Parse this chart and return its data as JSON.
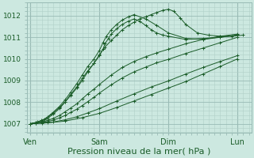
{
  "background_color": "#cce8e0",
  "plot_bg_color": "#cce8e0",
  "grid_minor_color": "#b0d0c8",
  "grid_major_color": "#99bbb5",
  "line_color": "#1a5c28",
  "ylim": [
    1006.6,
    1012.6
  ],
  "yticks": [
    1007,
    1008,
    1009,
    1010,
    1011,
    1012
  ],
  "xlabel": "Pression niveau de la mer( hPa )",
  "xlabel_fontsize": 8,
  "xtick_labels": [
    "Ven",
    "Sam",
    "Dim",
    "Lun"
  ],
  "xtick_positions": [
    0,
    1,
    2,
    3
  ],
  "series": [
    {
      "x": [
        0.0,
        0.08,
        0.16,
        0.25,
        0.33,
        0.42,
        0.5,
        0.58,
        0.67,
        0.75,
        0.83,
        0.92,
        1.0,
        1.08,
        1.17,
        1.25,
        1.33,
        1.42,
        1.5,
        1.58,
        1.67,
        1.75,
        1.83,
        1.92,
        2.0,
        2.08,
        2.17,
        2.25,
        2.42,
        2.58,
        2.75,
        2.92,
        3.08
      ],
      "y": [
        1007.0,
        1007.05,
        1007.15,
        1007.3,
        1007.5,
        1007.75,
        1008.0,
        1008.3,
        1008.65,
        1009.0,
        1009.4,
        1009.8,
        1010.2,
        1010.55,
        1010.85,
        1011.1,
        1011.35,
        1011.55,
        1011.7,
        1011.85,
        1011.95,
        1012.05,
        1012.15,
        1012.25,
        1012.3,
        1012.2,
        1011.9,
        1011.6,
        1011.2,
        1011.1,
        1011.05,
        1011.05,
        1011.1
      ]
    },
    {
      "x": [
        0.0,
        0.1,
        0.2,
        0.3,
        0.42,
        0.5,
        0.58,
        0.67,
        0.75,
        0.83,
        0.92,
        1.0,
        1.05,
        1.1,
        1.17,
        1.25,
        1.33,
        1.42,
        1.5,
        1.67,
        1.83,
        2.0,
        2.25,
        2.5,
        2.75,
        3.0
      ],
      "y": [
        1007.0,
        1007.08,
        1007.2,
        1007.45,
        1007.8,
        1008.1,
        1008.45,
        1008.85,
        1009.25,
        1009.65,
        1010.0,
        1010.4,
        1010.75,
        1011.05,
        1011.35,
        1011.6,
        1011.8,
        1011.95,
        1012.05,
        1011.85,
        1011.55,
        1011.2,
        1010.95,
        1010.9,
        1011.0,
        1011.1
      ]
    },
    {
      "x": [
        0.0,
        0.08,
        0.17,
        0.25,
        0.33,
        0.42,
        0.5,
        0.58,
        0.67,
        0.75,
        0.83,
        0.92,
        1.0,
        1.05,
        1.08,
        1.13,
        1.17,
        1.25,
        1.33,
        1.42,
        1.5,
        1.58,
        1.67,
        1.75,
        1.83,
        1.92,
        2.0,
        2.25,
        2.5,
        2.75,
        3.0
      ],
      "y": [
        1007.0,
        1007.05,
        1007.12,
        1007.25,
        1007.45,
        1007.7,
        1008.0,
        1008.35,
        1008.7,
        1009.1,
        1009.45,
        1009.8,
        1010.15,
        1010.45,
        1010.7,
        1010.95,
        1011.15,
        1011.4,
        1011.6,
        1011.75,
        1011.85,
        1011.75,
        1011.55,
        1011.35,
        1011.2,
        1011.1,
        1011.05,
        1010.9,
        1010.95,
        1011.0,
        1011.1
      ]
    },
    {
      "x": [
        0.0,
        0.08,
        0.17,
        0.25,
        0.33,
        0.42,
        0.5,
        0.58,
        0.67,
        0.75,
        0.83,
        0.92,
        1.0,
        1.17,
        1.33,
        1.5,
        1.67,
        1.83,
        2.0,
        2.25,
        2.5,
        2.75,
        3.0
      ],
      "y": [
        1007.0,
        1007.03,
        1007.08,
        1007.15,
        1007.25,
        1007.38,
        1007.55,
        1007.72,
        1007.92,
        1008.15,
        1008.38,
        1008.6,
        1008.82,
        1009.25,
        1009.6,
        1009.88,
        1010.1,
        1010.28,
        1010.45,
        1010.7,
        1010.9,
        1011.05,
        1011.15
      ]
    },
    {
      "x": [
        0.0,
        0.08,
        0.17,
        0.25,
        0.33,
        0.42,
        0.5,
        0.58,
        0.67,
        0.75,
        0.83,
        0.92,
        1.0,
        1.17,
        1.33,
        1.5,
        1.67,
        1.83,
        2.0,
        2.25,
        2.5,
        2.75,
        3.0
      ],
      "y": [
        1007.0,
        1007.02,
        1007.05,
        1007.1,
        1007.17,
        1007.27,
        1007.38,
        1007.52,
        1007.67,
        1007.84,
        1008.02,
        1008.22,
        1008.42,
        1008.8,
        1009.12,
        1009.4,
        1009.62,
        1009.82,
        1009.98,
        1010.25,
        1010.5,
        1010.75,
        1011.0
      ]
    },
    {
      "x": [
        0.0,
        0.17,
        0.33,
        0.5,
        0.67,
        0.83,
        1.0,
        1.25,
        1.5,
        1.75,
        2.0,
        2.25,
        2.5,
        2.75,
        3.0
      ],
      "y": [
        1007.0,
        1007.03,
        1007.08,
        1007.18,
        1007.32,
        1007.5,
        1007.7,
        1008.05,
        1008.38,
        1008.7,
        1008.98,
        1009.3,
        1009.6,
        1009.88,
        1010.15
      ]
    },
    {
      "x": [
        0.0,
        0.25,
        0.5,
        0.75,
        1.0,
        1.25,
        1.5,
        1.75,
        2.0,
        2.25,
        2.5,
        2.75,
        3.0
      ],
      "y": [
        1007.0,
        1007.04,
        1007.12,
        1007.28,
        1007.48,
        1007.75,
        1008.05,
        1008.35,
        1008.65,
        1008.95,
        1009.3,
        1009.65,
        1010.0
      ]
    }
  ]
}
